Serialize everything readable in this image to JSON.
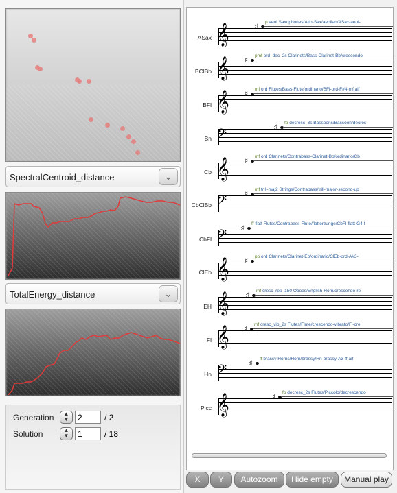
{
  "scatter": {
    "points_label": "solution-space"
  },
  "dropdown1": {
    "value": "SpectralCentroid_distance"
  },
  "dropdown2": {
    "value": "TotalEnergy_distance"
  },
  "generation": {
    "label": "Generation",
    "value": "2",
    "total": "/ 2"
  },
  "solution": {
    "label": "Solution",
    "value": "1",
    "total": "/ 18"
  },
  "buttons": {
    "x": "X",
    "y": "Y",
    "autozoom": "Autozoom",
    "hide_empty": "Hide empty",
    "manual_play": "Manual play"
  },
  "score": [
    {
      "name": "ASax",
      "dyn": "p",
      "text": "aeol  Saxophones/Alto-Sax/aeolian/ASax-aeol-"
    },
    {
      "name": "BClBb",
      "dyn": "pmf",
      "text": "ord_dec_2s  Clarinets/Bass-Clarinet-Bb/crescendo"
    },
    {
      "name": "BFl",
      "dyn": "mf",
      "text": "ord  Flutes/Bass-Flute/ordinario/BFl-ord-F#4-mf.aif"
    },
    {
      "name": "Bn",
      "dyn": "fp",
      "text": "decresc_3s  Bassoons/Bassoon/decres"
    },
    {
      "name": "Cb",
      "dyn": "mf",
      "text": "ord  Clarinets/Contrabass-Clarinet-Bb/ordinario/Cb"
    },
    {
      "name": "CbClBb",
      "dyn": "mf",
      "text": "trill-maj2  Strings/Contrabass/trill-major-second-up"
    },
    {
      "name": "CbFl",
      "dyn": "ff",
      "text": "flatt  Flutes/Contrabass-Flute/flatterzunge/CbFl-flatt-G4-f"
    },
    {
      "name": "ClEb",
      "dyn": "pp",
      "text": "ord  Clarinets/Clarinet-Eb/ordinario/ClEb-ord-A#3-"
    },
    {
      "name": "EH",
      "dyn": "mf",
      "text": "cresc_rep_150  Oboes/English-Horn/crescendo-re"
    },
    {
      "name": "Fl",
      "dyn": "mf",
      "text": "cresc_vib_2s  Flutes/Flute/crescendo-vibrato/Fl-cre"
    },
    {
      "name": "Hn",
      "dyn": "ff",
      "text": "brassy  Horns/Horn/brassy/Hn-brassy-A3-ff.aif"
    },
    {
      "name": "Picc",
      "dyn": "fp",
      "text": "decresc_2s  Flutes/Piccolo/decrescendo"
    }
  ],
  "accent": "#e06060"
}
